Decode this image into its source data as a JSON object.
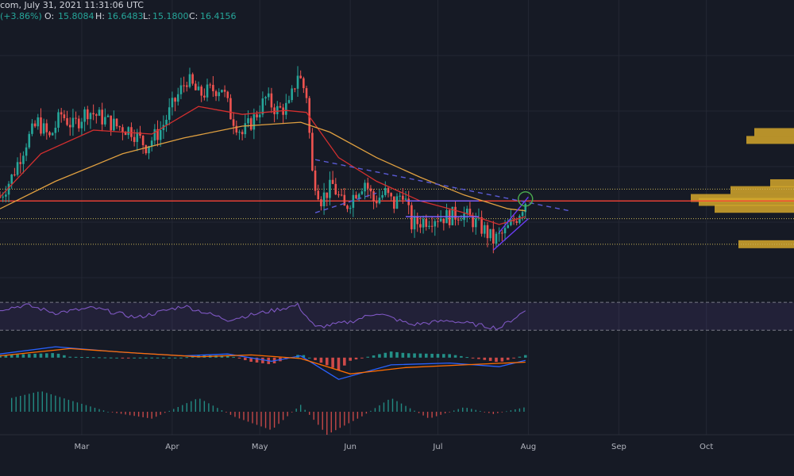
{
  "header": {
    "title_fragment": "com, July 31, 2021 11:31:06 UTC",
    "change": "(+3.86%)",
    "o_label": "O:",
    "o_value": "15.8084",
    "h_label": "H:",
    "h_value": "16.6483",
    "l_label": "L:",
    "l_value": "15.1800",
    "c_label": "C:",
    "c_value": "16.4156"
  },
  "colors": {
    "background": "#161a25",
    "up": "#26a69a",
    "down": "#ef5350",
    "ema_fast": "#d32f2f",
    "ema_slow": "#e0a040",
    "rsi": "#7e57c2",
    "macd": "#2962ff",
    "signal": "#ff6d00",
    "level": "#f44336",
    "channel": "#6a3df5",
    "volume_profile": "#d4a72c"
  },
  "chart_data": [
    {
      "type": "candlestick",
      "x_axis": {
        "ticks": [
          "Mar",
          "Apr",
          "May",
          "Jun",
          "Jul",
          "Aug",
          "Sep",
          "Oct"
        ],
        "start": "2021-02-01",
        "end": "2021-10-31"
      },
      "ylim": [
        12.5,
        25
      ],
      "price_path": [
        [
          "2021-02-01",
          16.6
        ],
        [
          "2021-02-05",
          17.6
        ],
        [
          "2021-02-10",
          19.4
        ],
        [
          "2021-02-14",
          20.4
        ],
        [
          "2021-02-18",
          19.6
        ],
        [
          "2021-02-22",
          20.8
        ],
        [
          "2021-02-26",
          20.2
        ],
        [
          "2021-03-03",
          21.0
        ],
        [
          "2021-03-08",
          20.6
        ],
        [
          "2021-03-13",
          20.2
        ],
        [
          "2021-03-18",
          20.0
        ],
        [
          "2021-03-23",
          19.2
        ],
        [
          "2021-03-28",
          20.0
        ],
        [
          "2021-04-02",
          21.5
        ],
        [
          "2021-04-06",
          22.6
        ],
        [
          "2021-04-10",
          21.8
        ],
        [
          "2021-04-14",
          22.0
        ],
        [
          "2021-04-18",
          22.2
        ],
        [
          "2021-04-21",
          20.8
        ],
        [
          "2021-04-25",
          19.8
        ],
        [
          "2021-04-29",
          20.6
        ],
        [
          "2021-05-03",
          21.6
        ],
        [
          "2021-05-07",
          21.0
        ],
        [
          "2021-05-11",
          21.2
        ],
        [
          "2021-05-14",
          22.9
        ],
        [
          "2021-05-17",
          21.8
        ],
        [
          "2021-05-19",
          17.8
        ],
        [
          "2021-05-22",
          16.5
        ],
        [
          "2021-05-26",
          17.2
        ],
        [
          "2021-05-30",
          16.0
        ],
        [
          "2021-06-03",
          16.9
        ],
        [
          "2021-06-06",
          17.4
        ],
        [
          "2021-06-09",
          16.4
        ],
        [
          "2021-06-13",
          16.8
        ],
        [
          "2021-06-16",
          16.2
        ],
        [
          "2021-06-19",
          16.9
        ],
        [
          "2021-06-22",
          15.2
        ],
        [
          "2021-06-26",
          15.4
        ],
        [
          "2021-06-30",
          15.6
        ],
        [
          "2021-07-05",
          15.6
        ],
        [
          "2021-07-09",
          15.8
        ],
        [
          "2021-07-13",
          15.4
        ],
        [
          "2021-07-17",
          14.9
        ],
        [
          "2021-07-20",
          14.4
        ],
        [
          "2021-07-24",
          14.8
        ],
        [
          "2021-07-28",
          15.6
        ],
        [
          "2021-07-31",
          16.4
        ]
      ],
      "lines": [
        {
          "role": "ema-fast",
          "points": [
            [
              "2021-02-01",
              16.6
            ],
            [
              "2021-02-15",
              18.8
            ],
            [
              "2021-03-05",
              20.0
            ],
            [
              "2021-03-25",
              19.8
            ],
            [
              "2021-04-10",
              21.2
            ],
            [
              "2021-04-25",
              20.8
            ],
            [
              "2021-05-10",
              21.0
            ],
            [
              "2021-05-17",
              20.9
            ],
            [
              "2021-05-28",
              18.6
            ],
            [
              "2021-06-10",
              17.4
            ],
            [
              "2021-06-25",
              16.4
            ],
            [
              "2021-07-10",
              15.8
            ],
            [
              "2021-07-22",
              15.2
            ],
            [
              "2021-07-31",
              15.6
            ]
          ]
        },
        {
          "role": "ema-slow",
          "points": [
            [
              "2021-02-01",
              16.0
            ],
            [
              "2021-02-20",
              17.4
            ],
            [
              "2021-03-15",
              18.8
            ],
            [
              "2021-04-05",
              19.6
            ],
            [
              "2021-04-25",
              20.2
            ],
            [
              "2021-05-15",
              20.4
            ],
            [
              "2021-05-25",
              19.9
            ],
            [
              "2021-06-10",
              18.6
            ],
            [
              "2021-06-25",
              17.6
            ],
            [
              "2021-07-10",
              16.7
            ],
            [
              "2021-07-25",
              16.0
            ],
            [
              "2021-07-31",
              15.9
            ]
          ]
        }
      ],
      "levels": [
        {
          "role": "resistance",
          "y": 16.4,
          "style": "solid"
        },
        {
          "role": "dotted-upper",
          "y": 17.0,
          "style": "dotted"
        },
        {
          "role": "dotted-lower",
          "y": 15.5,
          "style": "dotted"
        },
        {
          "role": "dotted-bottom",
          "y": 14.2,
          "style": "dotted"
        }
      ],
      "drawings": [
        {
          "role": "dashed-trendline-upper",
          "points": [
            [
              "2021-05-20",
              18.5
            ],
            [
              "2021-08-15",
              15.9
            ]
          ]
        },
        {
          "role": "dashed-trendline-lower",
          "points": [
            [
              "2021-05-20",
              15.8
            ],
            [
              "2021-06-10",
              16.8
            ]
          ]
        },
        {
          "role": "range-box-top",
          "points": [
            [
              "2021-06-20",
              16.4
            ],
            [
              "2021-07-15",
              16.4
            ]
          ]
        },
        {
          "role": "range-box-bottom",
          "points": [
            [
              "2021-06-20",
              15.6
            ],
            [
              "2021-07-15",
              15.6
            ]
          ]
        },
        {
          "role": "channel-upper",
          "points": [
            [
              "2021-07-22",
              14.8
            ],
            [
              "2021-08-01",
              16.6
            ]
          ]
        },
        {
          "role": "channel-lower",
          "points": [
            [
              "2021-07-20",
              13.9
            ],
            [
              "2021-08-01",
              15.5
            ]
          ]
        }
      ],
      "circle_marker": [
        "2021-07-31",
        16.5
      ],
      "volume_profile": [
        {
          "price": 19.9,
          "length": 0.05
        },
        {
          "price": 19.5,
          "length": 0.06
        },
        {
          "price": 17.3,
          "length": 0.03
        },
        {
          "price": 16.95,
          "length": 0.08
        },
        {
          "price": 16.55,
          "length": 0.13
        },
        {
          "price": 16.35,
          "length": 0.12
        },
        {
          "price": 16.0,
          "length": 0.1
        },
        {
          "price": 14.2,
          "length": 0.07
        }
      ]
    },
    {
      "type": "line",
      "role": "rsi",
      "ylim": [
        20,
        85
      ],
      "band": [
        30,
        70
      ],
      "values": [
        [
          "2021-02-01",
          60
        ],
        [
          "2021-02-10",
          66
        ],
        [
          "2021-02-20",
          55
        ],
        [
          "2021-03-05",
          62
        ],
        [
          "2021-03-20",
          48
        ],
        [
          "2021-04-05",
          65
        ],
        [
          "2021-04-20",
          45
        ],
        [
          "2021-05-05",
          58
        ],
        [
          "2021-05-14",
          66
        ],
        [
          "2021-05-20",
          34
        ],
        [
          "2021-06-01",
          42
        ],
        [
          "2021-06-10",
          55
        ],
        [
          "2021-06-22",
          38
        ],
        [
          "2021-07-05",
          44
        ],
        [
          "2021-07-17",
          36
        ],
        [
          "2021-07-22",
          33
        ],
        [
          "2021-07-31",
          58
        ]
      ]
    },
    {
      "type": "line",
      "role": "macd",
      "ylim": [
        -1.5,
        1.0
      ],
      "series": [
        {
          "role": "macd",
          "values": [
            [
              "2021-02-01",
              0.2
            ],
            [
              "2021-02-20",
              0.6
            ],
            [
              "2021-03-15",
              0.3
            ],
            [
              "2021-04-05",
              0.1
            ],
            [
              "2021-04-20",
              0.2
            ],
            [
              "2021-05-05",
              -0.2
            ],
            [
              "2021-05-15",
              0.1
            ],
            [
              "2021-05-28",
              -1.2
            ],
            [
              "2021-06-15",
              -0.4
            ],
            [
              "2021-07-05",
              -0.3
            ],
            [
              "2021-07-22",
              -0.5
            ],
            [
              "2021-07-31",
              -0.15
            ]
          ]
        },
        {
          "role": "signal",
          "values": [
            [
              "2021-02-01",
              0.1
            ],
            [
              "2021-02-25",
              0.5
            ],
            [
              "2021-03-20",
              0.25
            ],
            [
              "2021-04-10",
              0.05
            ],
            [
              "2021-04-28",
              0.15
            ],
            [
              "2021-05-15",
              -0.05
            ],
            [
              "2021-06-01",
              -0.9
            ],
            [
              "2021-06-20",
              -0.55
            ],
            [
              "2021-07-10",
              -0.4
            ],
            [
              "2021-07-31",
              -0.25
            ]
          ]
        }
      ]
    },
    {
      "type": "bar",
      "role": "momentum",
      "ylim": [
        -1.0,
        1.0
      ],
      "values": [
        [
          "2021-02-05",
          0.6
        ],
        [
          "2021-02-15",
          0.9
        ],
        [
          "2021-02-25",
          0.5
        ],
        [
          "2021-03-10",
          0.0
        ],
        [
          "2021-03-25",
          -0.3
        ],
        [
          "2021-04-10",
          0.6
        ],
        [
          "2021-04-22",
          -0.2
        ],
        [
          "2021-05-05",
          -0.8
        ],
        [
          "2021-05-15",
          0.3
        ],
        [
          "2021-05-24",
          -1.0
        ],
        [
          "2021-06-05",
          -0.2
        ],
        [
          "2021-06-15",
          0.6
        ],
        [
          "2021-06-28",
          -0.3
        ],
        [
          "2021-07-10",
          0.2
        ],
        [
          "2021-07-20",
          -0.1
        ],
        [
          "2021-07-31",
          0.2
        ]
      ]
    }
  ]
}
